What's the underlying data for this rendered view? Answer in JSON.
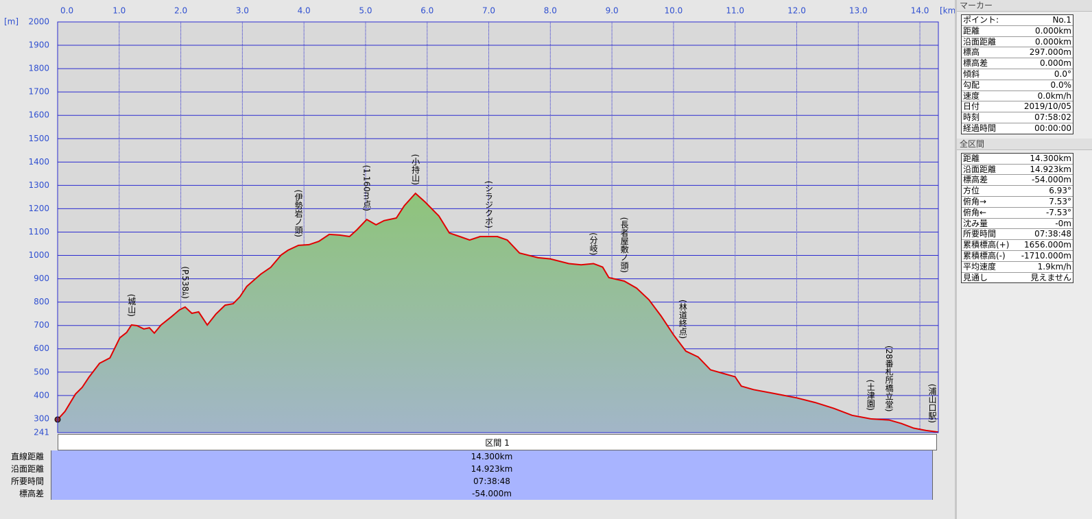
{
  "chart_data": {
    "type": "area",
    "x_unit_label": "[km]",
    "y_unit_label": "[m]",
    "x": [
      0.0,
      0.12,
      0.29,
      0.4,
      0.51,
      0.68,
      0.85,
      1.01,
      1.12,
      1.2,
      1.29,
      1.4,
      1.49,
      1.57,
      1.68,
      1.85,
      1.98,
      2.07,
      2.18,
      2.29,
      2.43,
      2.57,
      2.72,
      2.85,
      2.96,
      3.07,
      3.3,
      3.46,
      3.63,
      3.74,
      3.91,
      4.08,
      4.24,
      4.41,
      4.58,
      4.74,
      4.86,
      5.02,
      5.17,
      5.3,
      5.5,
      5.63,
      5.81,
      5.97,
      6.19,
      6.36,
      6.53,
      6.69,
      6.86,
      6.99,
      7.14,
      7.3,
      7.5,
      7.8,
      8.0,
      8.3,
      8.5,
      8.7,
      8.85,
      8.95,
      9.2,
      9.4,
      9.6,
      9.8,
      10.0,
      10.2,
      10.4,
      10.6,
      10.8,
      11.0,
      11.1,
      11.3,
      11.6,
      12.0,
      12.3,
      12.6,
      12.9,
      13.2,
      13.5,
      13.7,
      13.9,
      14.1,
      14.3
    ],
    "values": [
      297,
      332,
      406,
      435,
      479,
      538,
      561,
      647,
      670,
      702,
      699,
      685,
      690,
      667,
      702,
      738,
      767,
      779,
      752,
      758,
      702,
      749,
      787,
      793,
      823,
      867,
      920,
      949,
      1002,
      1022,
      1043,
      1046,
      1060,
      1090,
      1087,
      1081,
      1110,
      1154,
      1131,
      1149,
      1160,
      1213,
      1266,
      1228,
      1169,
      1096,
      1081,
      1066,
      1081,
      1081,
      1081,
      1066,
      1010,
      990,
      985,
      965,
      960,
      965,
      950,
      905,
      890,
      860,
      810,
      740,
      660,
      590,
      565,
      510,
      495,
      480,
      440,
      425,
      410,
      390,
      370,
      345,
      315,
      300,
      295,
      280,
      260,
      250,
      243
    ],
    "color": "#e00000",
    "fill_gradient": [
      "#8ec47a",
      "#a2b6c8"
    ],
    "xlim": [
      0,
      14.3
    ],
    "xticks": [
      {
        "value": 0,
        "label": "0.0"
      },
      {
        "value": 1,
        "label": "1.0"
      },
      {
        "value": 2,
        "label": "2.0"
      },
      {
        "value": 3,
        "label": "3.0"
      },
      {
        "value": 4,
        "label": "4.0"
      },
      {
        "value": 5,
        "label": "5.0"
      },
      {
        "value": 6,
        "label": "6.0"
      },
      {
        "value": 7,
        "label": "7.0"
      },
      {
        "value": 8,
        "label": "8.0"
      },
      {
        "value": 9,
        "label": "9.0"
      },
      {
        "value": 10,
        "label": "10.0"
      },
      {
        "value": 11,
        "label": "11.0"
      },
      {
        "value": 12,
        "label": "12.0"
      },
      {
        "value": 13,
        "label": "13.0"
      },
      {
        "value": 14,
        "label": "14.0"
      }
    ],
    "ylim": [
      241,
      2000
    ],
    "yticks": [
      241,
      300,
      400,
      500,
      600,
      700,
      800,
      900,
      1000,
      1100,
      1200,
      1300,
      1400,
      1500,
      1600,
      1700,
      1800,
      1900,
      2000
    ],
    "grid": true,
    "grid_color": "#2a2ad0",
    "annotations": [
      {
        "label": "(城山)",
        "x": 1.2
      },
      {
        "label": "(P.538ﾑ)",
        "x": 2.07
      },
      {
        "label": "(伊勢岩ノ頭)",
        "x": 3.91
      },
      {
        "label": "(1,160m点)",
        "x": 5.02
      },
      {
        "label": "(小持山)",
        "x": 5.81
      },
      {
        "label": "(シラジクボ)",
        "x": 7.0
      },
      {
        "label": "(分岐)",
        "x": 8.7
      },
      {
        "label": "(長者屋敷ノ頭)",
        "x": 9.2
      },
      {
        "label": "(林道終点)",
        "x": 10.15
      },
      {
        "label": "(土津園)",
        "x": 13.2
      },
      {
        "label": "(28番札所橋立堂)",
        "x": 13.5
      },
      {
        "label": "(浦山口駅)",
        "x": 14.2
      }
    ]
  },
  "section_table": {
    "header": "区間 1",
    "rows": [
      [
        "直線距離",
        "14.300km"
      ],
      [
        "沿面距離",
        "14.923km"
      ],
      [
        "所要時間",
        "07:38:48"
      ],
      [
        "標高差",
        "-54.000m"
      ]
    ]
  },
  "marker_panel": {
    "title": "マーカー",
    "rows": [
      [
        "ポイント:",
        "No.1"
      ],
      [
        "距離",
        "0.000km"
      ],
      [
        "沿面距離",
        "0.000km"
      ],
      [
        "標高",
        "297.000m"
      ],
      [
        "標高差",
        "0.000m"
      ],
      [
        "傾斜",
        "0.0°"
      ],
      [
        "勾配",
        "0.0%"
      ],
      [
        "速度",
        "0.0km/h"
      ],
      [
        "日付",
        "2019/10/05"
      ],
      [
        "時刻",
        "07:58:02"
      ],
      [
        "経過時間",
        "00:00:00"
      ]
    ]
  },
  "total_panel": {
    "title": "全区間",
    "rows": [
      [
        "距離",
        "14.300km"
      ],
      [
        "沿面距離",
        "14.923km"
      ],
      [
        "標高差",
        "-54.000m"
      ],
      [
        "方位",
        "6.93°"
      ],
      [
        "俯角→",
        "7.53°"
      ],
      [
        "俯角←",
        "-7.53°"
      ],
      [
        "沈み量",
        "-0m"
      ],
      [
        "所要時間",
        "07:38:48"
      ],
      [
        "累積標高(+)",
        "1656.000m"
      ],
      [
        "累積標高(-)",
        "-1710.000m"
      ],
      [
        "平均速度",
        "1.9km/h"
      ],
      [
        "見通し",
        "見えません"
      ]
    ]
  }
}
